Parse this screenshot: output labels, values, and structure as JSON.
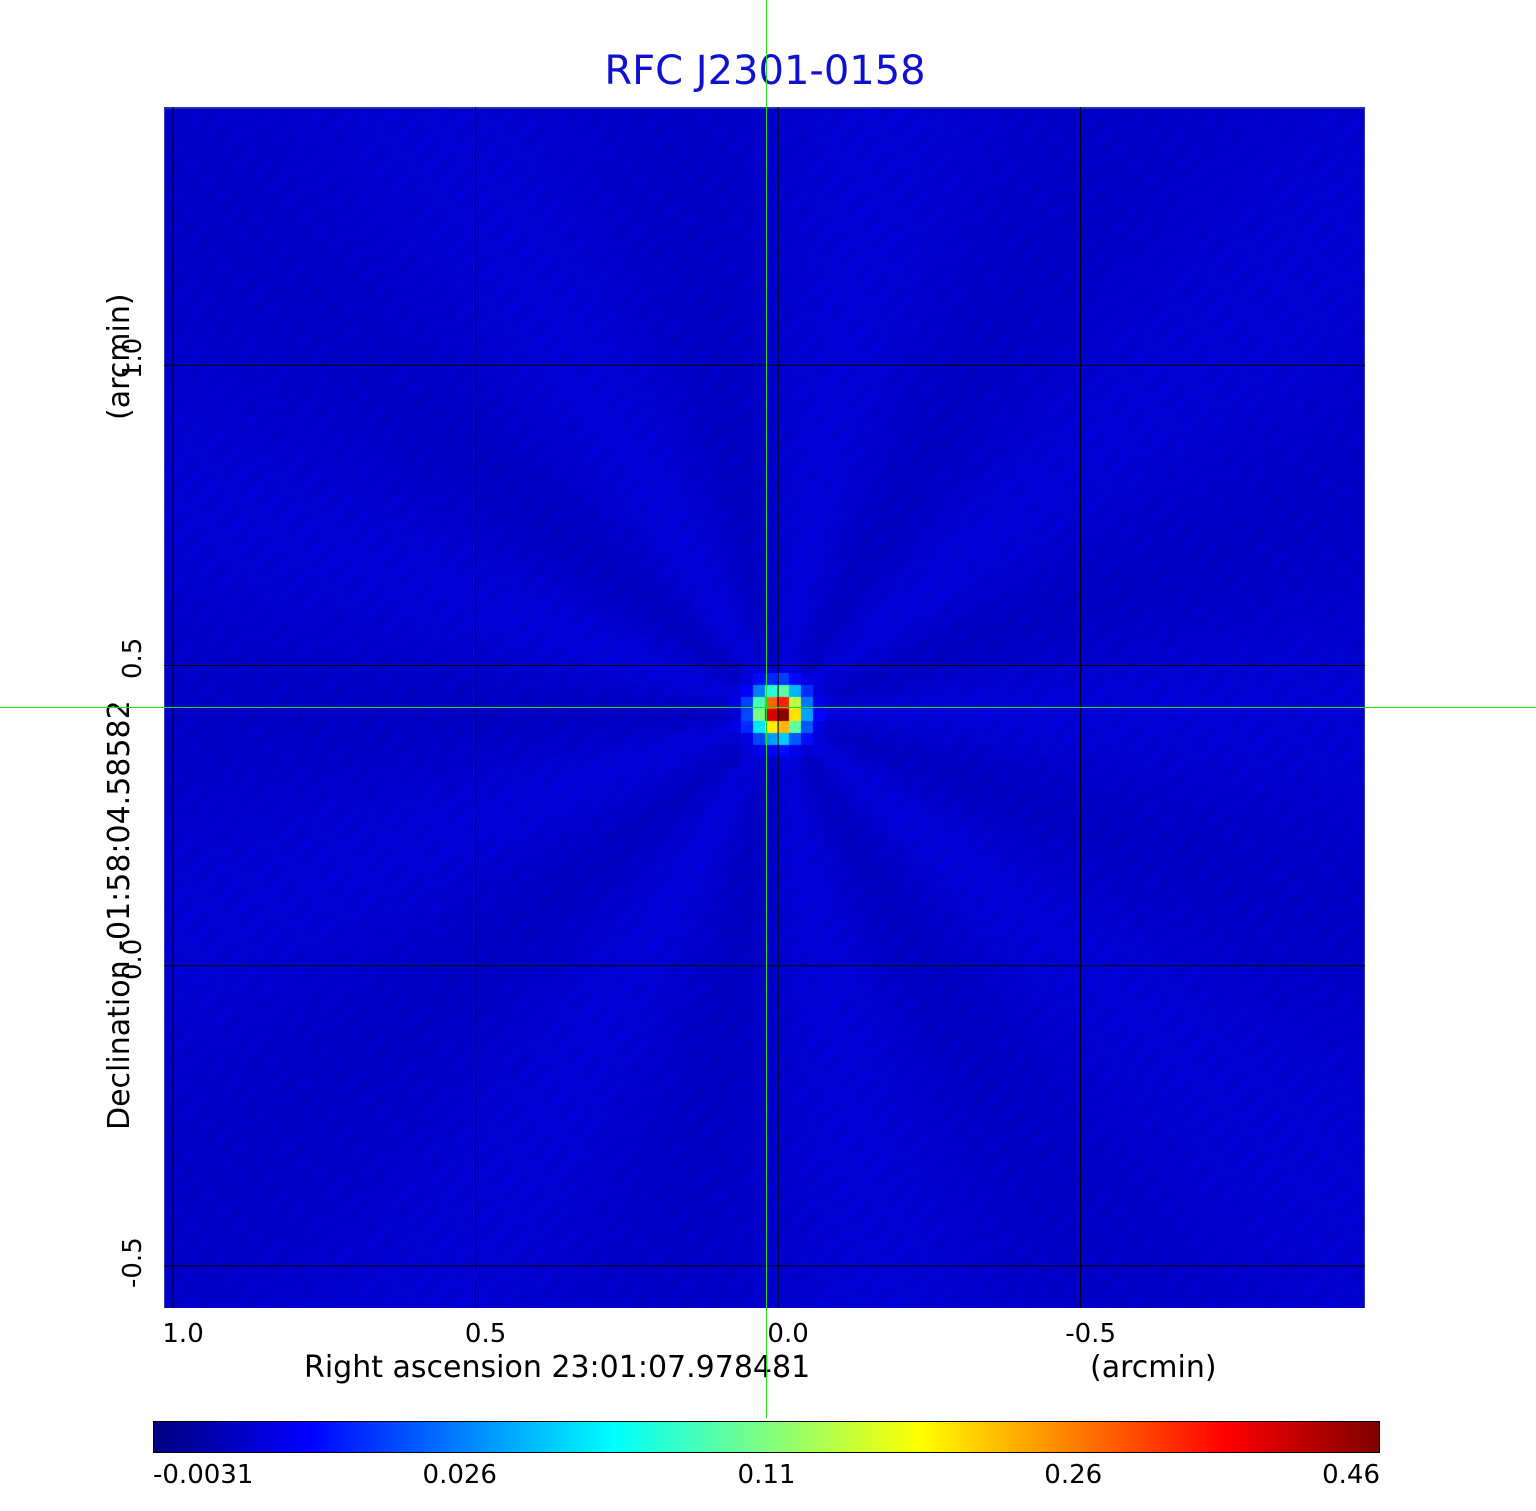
{
  "title": "RFC J2301-0158",
  "x_axis": {
    "label": "Right ascension  23:01:07.978481",
    "unit": "(arcmin)",
    "ticks": [
      "1.0",
      "0.5",
      "0.0",
      "-0.5"
    ]
  },
  "y_axis": {
    "label": "Declination  -01:58:04.58582",
    "unit": "(arcmin)",
    "ticks": [
      "1.0",
      "0.5",
      "0.0",
      "-0.5"
    ]
  },
  "colorbar": {
    "ticks": [
      "-0.0031",
      "0.026",
      "0.11",
      "0.26",
      "0.46"
    ],
    "colormap": "jet"
  },
  "colors": {
    "title": "#1010d0",
    "crosshair": "#22dd22",
    "background_field": "#0a1cf2"
  },
  "chart_data": {
    "type": "heatmap",
    "title": "RFC J2301-0158",
    "xlabel": "Right ascension  23:01:07.978481 (arcmin)",
    "ylabel": "Declination  -01:58:04.58582 (arcmin)",
    "xlim": [
      1.015,
      -0.97
    ],
    "ylim": [
      -0.57,
      1.43
    ],
    "x_ticks": [
      1.0,
      0.5,
      0.0,
      -0.5
    ],
    "y_ticks": [
      1.0,
      0.5,
      0.0,
      -0.5
    ],
    "grid": true,
    "crosshair": {
      "x": 0.0,
      "y": 0.425
    },
    "peak": {
      "x": 0.0,
      "y": 0.425,
      "value": 0.46
    },
    "value_range": [
      -0.0031,
      0.46
    ],
    "colorbar_ticks": [
      -0.0031,
      0.026,
      0.11,
      0.26,
      0.46
    ]
  }
}
